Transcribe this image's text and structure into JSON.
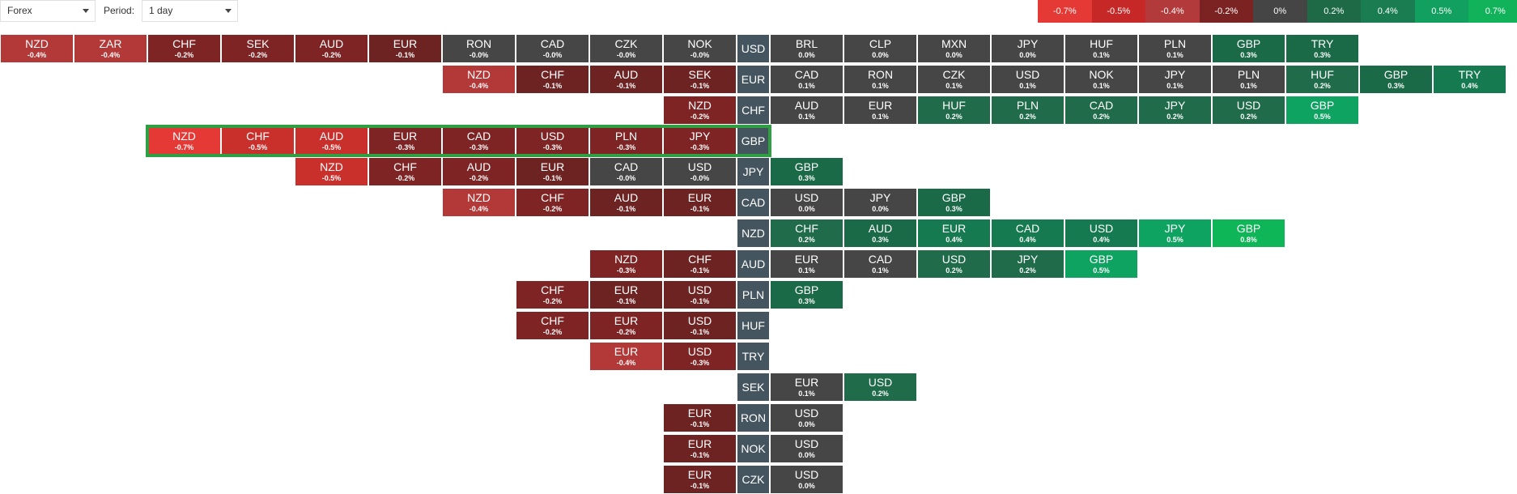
{
  "controls": {
    "market": "Forex",
    "period_label": "Period:",
    "period": "1 day"
  },
  "legend": [
    {
      "label": "-0.7%",
      "color": "#e53935"
    },
    {
      "label": "-0.5%",
      "color": "#c62828"
    },
    {
      "label": "-0.4%",
      "color": "#b23a3a"
    },
    {
      "label": "-0.2%",
      "color": "#7b2323"
    },
    {
      "label": "0%",
      "color": "#454545"
    },
    {
      "label": "0.2%",
      "color": "#1e6a47"
    },
    {
      "label": "0.4%",
      "color": "#1a7d52"
    },
    {
      "label": "0.5%",
      "color": "#11a060"
    },
    {
      "label": "0.7%",
      "color": "#10b35a"
    }
  ],
  "rows": [
    {
      "base": "USD",
      "neg": [
        [
          "NZD",
          "-0.4%"
        ],
        [
          "ZAR",
          "-0.4%"
        ],
        [
          "CHF",
          "-0.2%"
        ],
        [
          "SEK",
          "-0.2%"
        ],
        [
          "AUD",
          "-0.2%"
        ],
        [
          "EUR",
          "-0.1%"
        ],
        [
          "RON",
          "-0.0%"
        ],
        [
          "CAD",
          "-0.0%"
        ],
        [
          "CZK",
          "-0.0%"
        ],
        [
          "NOK",
          "-0.0%"
        ]
      ],
      "pos": [
        [
          "BRL",
          "0.0%"
        ],
        [
          "CLP",
          "0.0%"
        ],
        [
          "MXN",
          "0.0%"
        ],
        [
          "JPY",
          "0.0%"
        ],
        [
          "HUF",
          "0.1%"
        ],
        [
          "PLN",
          "0.1%"
        ],
        [
          "GBP",
          "0.3%"
        ],
        [
          "TRY",
          "0.3%"
        ]
      ]
    },
    {
      "base": "EUR",
      "neg": [
        [
          "NZD",
          "-0.4%"
        ],
        [
          "CHF",
          "-0.1%"
        ],
        [
          "AUD",
          "-0.1%"
        ],
        [
          "SEK",
          "-0.1%"
        ]
      ],
      "pos": [
        [
          "CAD",
          "0.1%"
        ],
        [
          "RON",
          "0.1%"
        ],
        [
          "CZK",
          "0.1%"
        ],
        [
          "USD",
          "0.1%"
        ],
        [
          "NOK",
          "0.1%"
        ],
        [
          "JPY",
          "0.1%"
        ],
        [
          "PLN",
          "0.1%"
        ],
        [
          "HUF",
          "0.2%"
        ],
        [
          "GBP",
          "0.3%"
        ],
        [
          "TRY",
          "0.4%"
        ]
      ]
    },
    {
      "base": "CHF",
      "neg": [
        [
          "NZD",
          "-0.2%"
        ]
      ],
      "pos": [
        [
          "AUD",
          "0.1%"
        ],
        [
          "EUR",
          "0.1%"
        ],
        [
          "HUF",
          "0.2%"
        ],
        [
          "PLN",
          "0.2%"
        ],
        [
          "CAD",
          "0.2%"
        ],
        [
          "JPY",
          "0.2%"
        ],
        [
          "USD",
          "0.2%"
        ],
        [
          "GBP",
          "0.5%"
        ]
      ]
    },
    {
      "base": "GBP",
      "neg": [
        [
          "NZD",
          "-0.7%"
        ],
        [
          "CHF",
          "-0.5%"
        ],
        [
          "AUD",
          "-0.5%"
        ],
        [
          "EUR",
          "-0.3%"
        ],
        [
          "CAD",
          "-0.3%"
        ],
        [
          "USD",
          "-0.3%"
        ],
        [
          "PLN",
          "-0.3%"
        ],
        [
          "JPY",
          "-0.3%"
        ]
      ],
      "pos": []
    },
    {
      "base": "JPY",
      "neg": [
        [
          "NZD",
          "-0.5%"
        ],
        [
          "CHF",
          "-0.2%"
        ],
        [
          "AUD",
          "-0.2%"
        ],
        [
          "EUR",
          "-0.1%"
        ],
        [
          "CAD",
          "-0.0%"
        ],
        [
          "USD",
          "-0.0%"
        ]
      ],
      "pos": [
        [
          "GBP",
          "0.3%"
        ]
      ]
    },
    {
      "base": "CAD",
      "neg": [
        [
          "NZD",
          "-0.4%"
        ],
        [
          "CHF",
          "-0.2%"
        ],
        [
          "AUD",
          "-0.1%"
        ],
        [
          "EUR",
          "-0.1%"
        ]
      ],
      "pos": [
        [
          "USD",
          "0.0%"
        ],
        [
          "JPY",
          "0.0%"
        ],
        [
          "GBP",
          "0.3%"
        ]
      ]
    },
    {
      "base": "NZD",
      "neg": [],
      "pos": [
        [
          "CHF",
          "0.2%"
        ],
        [
          "AUD",
          "0.3%"
        ],
        [
          "EUR",
          "0.4%"
        ],
        [
          "CAD",
          "0.4%"
        ],
        [
          "USD",
          "0.4%"
        ],
        [
          "JPY",
          "0.5%"
        ],
        [
          "GBP",
          "0.8%"
        ]
      ]
    },
    {
      "base": "AUD",
      "neg": [
        [
          "NZD",
          "-0.3%"
        ],
        [
          "CHF",
          "-0.1%"
        ]
      ],
      "pos": [
        [
          "EUR",
          "0.1%"
        ],
        [
          "CAD",
          "0.1%"
        ],
        [
          "USD",
          "0.2%"
        ],
        [
          "JPY",
          "0.2%"
        ],
        [
          "GBP",
          "0.5%"
        ]
      ]
    },
    {
      "base": "PLN",
      "neg": [
        [
          "CHF",
          "-0.2%"
        ],
        [
          "EUR",
          "-0.1%"
        ],
        [
          "USD",
          "-0.1%"
        ]
      ],
      "pos": [
        [
          "GBP",
          "0.3%"
        ]
      ]
    },
    {
      "base": "HUF",
      "neg": [
        [
          "CHF",
          "-0.2%"
        ],
        [
          "EUR",
          "-0.2%"
        ],
        [
          "USD",
          "-0.1%"
        ]
      ],
      "pos": []
    },
    {
      "base": "TRY",
      "neg": [
        [
          "EUR",
          "-0.4%"
        ],
        [
          "USD",
          "-0.3%"
        ]
      ],
      "pos": []
    },
    {
      "base": "SEK",
      "neg": [],
      "pos": [
        [
          "EUR",
          "0.1%"
        ],
        [
          "USD",
          "0.2%"
        ]
      ]
    },
    {
      "base": "RON",
      "neg": [
        [
          "EUR",
          "-0.1%"
        ]
      ],
      "pos": [
        [
          "USD",
          "0.0%"
        ]
      ]
    },
    {
      "base": "NOK",
      "neg": [
        [
          "EUR",
          "-0.1%"
        ]
      ],
      "pos": [
        [
          "USD",
          "0.0%"
        ]
      ]
    },
    {
      "base": "CZK",
      "neg": [
        [
          "EUR",
          "-0.1%"
        ]
      ],
      "pos": [
        [
          "USD",
          "0.0%"
        ]
      ]
    }
  ],
  "highlighted_base": "GBP"
}
